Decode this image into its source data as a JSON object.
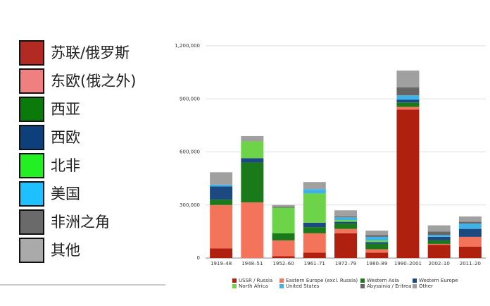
{
  "chart_data": {
    "type": "stacked_bar",
    "categories": [
      "1919–48",
      "1948–51",
      "1952–60",
      "1961–71",
      "1972–79",
      "1980–89",
      "1990–2001",
      "2002–10",
      "2011–20"
    ],
    "series": [
      {
        "name": "USSR / Russia",
        "color": "#b0200f",
        "values": [
          55000,
          0,
          10000,
          30000,
          140000,
          30000,
          840000,
          75000,
          65000
        ]
      },
      {
        "name": "Eastern Europe (excl. Russia)",
        "color": "#f4735b",
        "values": [
          245000,
          315000,
          90000,
          110000,
          25000,
          20000,
          15000,
          5000,
          55000
        ]
      },
      {
        "name": "Western Asia",
        "color": "#1a7a1a",
        "values": [
          30000,
          225000,
          40000,
          35000,
          30000,
          30000,
          25000,
          20000,
          0
        ]
      },
      {
        "name": "Western Europe",
        "color": "#1c4a80",
        "values": [
          75000,
          25000,
          0,
          25000,
          10000,
          10000,
          15000,
          20000,
          45000
        ]
      },
      {
        "name": "North Africa",
        "color": "#6dd44a",
        "values": [
          0,
          95000,
          145000,
          165000,
          10000,
          10000,
          0,
          0,
          0
        ]
      },
      {
        "name": "United States",
        "color": "#3fb3e8",
        "values": [
          10000,
          0,
          0,
          25000,
          15000,
          20000,
          25000,
          10000,
          30000
        ]
      },
      {
        "name": "Abyssinia / Eritrea",
        "color": "#666666",
        "values": [
          0,
          0,
          5000,
          0,
          5000,
          10000,
          45000,
          20000,
          10000
        ]
      },
      {
        "name": "Other",
        "color": "#a0a0a0",
        "values": [
          70000,
          30000,
          10000,
          40000,
          35000,
          25000,
          95000,
          35000,
          30000
        ]
      }
    ],
    "ylim": [
      0,
      1200000
    ],
    "yticks": [
      0,
      {
        "value": 300000,
        "label": "300,000"
      },
      {
        "value": 600000,
        "label": "600,000"
      },
      {
        "value": 900000,
        "label": "900,000"
      },
      {
        "value": 1200000,
        "label": "1,200,000"
      }
    ],
    "grid": true,
    "legend": "bottom",
    "alt_legend": [
      {
        "name": "苏联/俄罗斯",
        "color": "#b22a22"
      },
      {
        "name": "东欧(俄之外)",
        "color": "#f08080"
      },
      {
        "name": "西亚",
        "color": "#0a7a0a"
      },
      {
        "name": "西欧",
        "color": "#0d3f7a"
      },
      {
        "name": "北非",
        "color": "#22f022"
      },
      {
        "name": "美国",
        "color": "#1ec0ff"
      },
      {
        "name": "非洲之角",
        "color": "#6a6a6a"
      },
      {
        "name": "其他",
        "color": "#aaaaaa"
      }
    ]
  }
}
